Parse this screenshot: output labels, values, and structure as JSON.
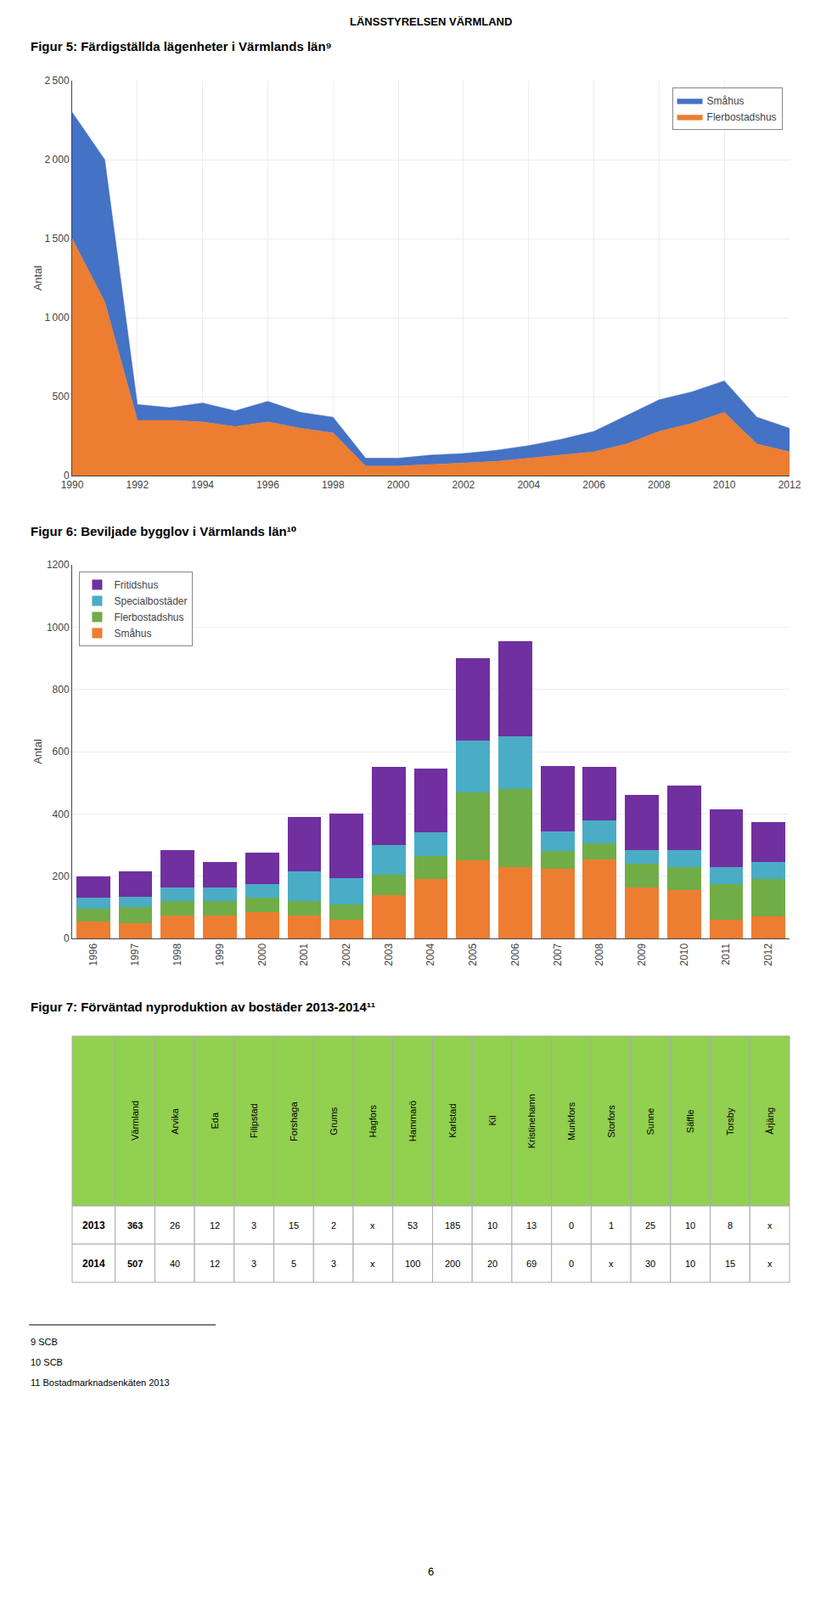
{
  "header": "LÄNSSTYRELSEN VÄRMLAND",
  "chart_data": [
    {
      "type": "area",
      "title": "Figur 5: Färdigställda lägenheter i Värmlands län⁹",
      "ylabel": "Antal",
      "x": [
        1990,
        1991,
        1992,
        1993,
        1994,
        1995,
        1996,
        1997,
        1998,
        1999,
        2000,
        2001,
        2002,
        2003,
        2004,
        2005,
        2006,
        2007,
        2008,
        2009,
        2010,
        2011,
        2012
      ],
      "series": [
        {
          "name": "Flerbostadshus",
          "color": "#ED7D31",
          "values": [
            1500,
            1100,
            350,
            350,
            340,
            310,
            340,
            300,
            270,
            60,
            60,
            70,
            80,
            90,
            110,
            130,
            150,
            200,
            280,
            330,
            400,
            200,
            150
          ]
        },
        {
          "name": "Småhus",
          "color": "#4472C4",
          "values": [
            800,
            900,
            100,
            80,
            120,
            100,
            130,
            100,
            100,
            50,
            50,
            60,
            60,
            70,
            80,
            100,
            130,
            180,
            200,
            200,
            200,
            170,
            150
          ]
        }
      ],
      "stacked": true,
      "xlim": [
        1990,
        2012
      ],
      "xticks": [
        1990,
        1992,
        1994,
        1996,
        1998,
        2000,
        2002,
        2004,
        2006,
        2008,
        2010,
        2012
      ],
      "ylim": [
        0,
        2500
      ],
      "yticks": [
        0,
        500,
        {
          "value": 1000,
          "label": "1 000"
        },
        {
          "value": 1500,
          "label": "1 500"
        },
        {
          "value": 2000,
          "label": "2 000"
        },
        {
          "value": 2500,
          "label": "2 500"
        }
      ],
      "grid": true,
      "legend": "upper right"
    },
    {
      "type": "bar",
      "title": "Figur 6: Beviljade bygglov i Värmlands län¹⁰",
      "ylabel": "Antal",
      "categories": [
        "1996",
        "1997",
        "1998",
        "1999",
        "2000",
        "2001",
        "2002",
        "2003",
        "2004",
        "2005",
        "2006",
        "2007",
        "2008",
        "2009",
        "2010",
        "2011",
        "2012"
      ],
      "series": [
        {
          "name": "Småhus",
          "color": "#ED7D31",
          "values": [
            55,
            50,
            75,
            75,
            85,
            75,
            60,
            140,
            190,
            250,
            230,
            225,
            255,
            165,
            155,
            60,
            70
          ]
        },
        {
          "name": "Flerbostadshus",
          "color": "#70AD47",
          "values": [
            40,
            50,
            45,
            45,
            45,
            45,
            50,
            65,
            75,
            220,
            250,
            55,
            50,
            75,
            75,
            115,
            120
          ]
        },
        {
          "name": "Specialbostäder",
          "color": "#4BACC6",
          "values": [
            35,
            35,
            45,
            45,
            45,
            95,
            85,
            95,
            75,
            165,
            170,
            65,
            75,
            45,
            55,
            55,
            55
          ]
        },
        {
          "name": "Fritidshus",
          "color": "#7030A0",
          "values": [
            70,
            80,
            120,
            80,
            100,
            175,
            205,
            250,
            205,
            265,
            305,
            210,
            170,
            175,
            205,
            185,
            130
          ]
        }
      ],
      "stacked": true,
      "ylim": [
        0,
        1200
      ],
      "yticks": [
        0,
        200,
        400,
        600,
        800,
        1000,
        1200
      ],
      "grid": "y",
      "legend": "upper left"
    },
    {
      "type": "table",
      "title": "Figur 7: Förväntad nyproduktion av bostäder 2013-2014¹¹",
      "columns": [
        "Värmland",
        "Arvika",
        "Eda",
        "Filipstad",
        "Forshaga",
        "Grums",
        "Hagfors",
        "Hammarö",
        "Karlstad",
        "Kil",
        "Kristinehamn",
        "Munkfors",
        "Storfors",
        "Sunne",
        "Säffle",
        "Torsby",
        "Årjäng"
      ],
      "rows": [
        {
          "label": "2013",
          "values": [
            "363",
            "26",
            "12",
            "3",
            "15",
            "2",
            "x",
            "53",
            "185",
            "10",
            "13",
            "0",
            "1",
            "25",
            "10",
            "8",
            "x"
          ]
        },
        {
          "label": "2014",
          "values": [
            "507",
            "40",
            "12",
            "3",
            "5",
            "3",
            "x",
            "100",
            "200",
            "20",
            "69",
            "0",
            "x",
            "30",
            "10",
            "15",
            "x"
          ]
        }
      ],
      "color": "#92D050"
    }
  ],
  "footnotes": [
    "9 SCB",
    "10 SCB",
    "11 Bostadmarknadsenkäten 2013"
  ],
  "page_number": "6"
}
